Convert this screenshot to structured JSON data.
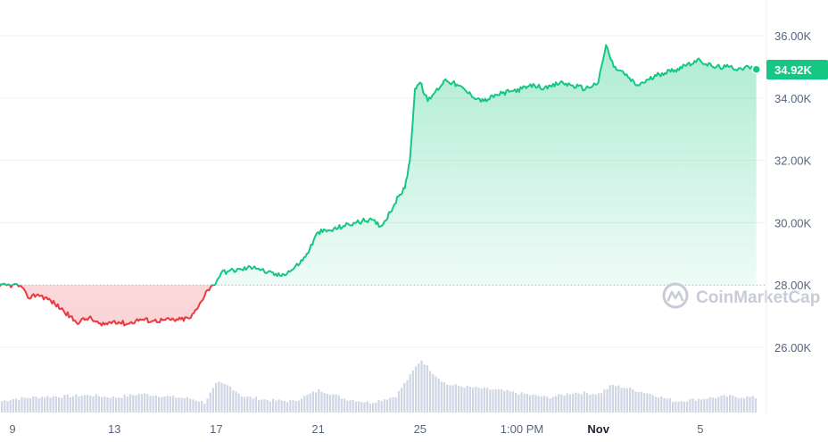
{
  "chart_data": {
    "type": "area",
    "title": "",
    "xlabel": "",
    "ylabel": "",
    "ylim": [
      24000,
      36600
    ],
    "yticks": [
      "26.00K",
      "28.00K",
      "30.00K",
      "32.00K",
      "34.00K",
      "36.00K"
    ],
    "ytick_values": [
      26000,
      28000,
      30000,
      32000,
      34000,
      36000
    ],
    "xtick_labels": [
      "9",
      "13",
      "17",
      "21",
      "25",
      "1:00 PM",
      "Nov",
      "5"
    ],
    "xtick_day_index": [
      0,
      4,
      8,
      12,
      16,
      20,
      23,
      27
    ],
    "xrange_days": [
      -0.5,
      29.2
    ],
    "baseline_value": 28000,
    "current_price": 34920,
    "current_price_label": "34.92K",
    "colors": {
      "up": "#16c784",
      "down": "#ea3943",
      "up_fill_top": "#16c784",
      "down_fill": "#ea3943",
      "volume": "#cfd6e4"
    },
    "series": [
      {
        "values_day_index": [
          -0.5,
          0,
          0.3,
          0.6,
          1,
          1.5,
          2,
          2.5,
          3,
          3.5,
          4,
          4.5,
          5,
          5.5,
          6,
          6.5,
          7,
          7.3,
          7.6,
          7.9,
          8.2,
          8.5,
          9,
          9.5,
          10,
          10.5,
          11,
          11.5,
          12,
          12.5,
          13,
          13.5,
          14,
          14.5,
          15,
          15.2,
          15.4,
          15.6,
          15.8,
          16,
          16.3,
          16.6,
          17,
          17.5,
          18,
          18.5,
          19,
          19.5,
          20,
          20.5,
          21,
          21.5,
          22,
          22.5,
          23,
          23.3,
          23.6,
          24,
          24.5,
          25,
          25.5,
          26,
          26.5,
          27,
          27.5,
          28,
          28.5,
          28.9,
          29.2
        ],
        "values": [
          27960,
          28000,
          27980,
          27600,
          27700,
          27500,
          27180,
          26800,
          26950,
          26700,
          26850,
          26750,
          26900,
          26850,
          26880,
          26880,
          26950,
          27300,
          27800,
          28000,
          28400,
          28450,
          28500,
          28600,
          28400,
          28300,
          28500,
          28900,
          29700,
          29750,
          29900,
          30000,
          30100,
          29900,
          30600,
          30900,
          31100,
          32000,
          34300,
          34500,
          33900,
          34200,
          34600,
          34400,
          34100,
          33900,
          34100,
          34200,
          34300,
          34400,
          34300,
          34500,
          34400,
          34300,
          34500,
          35700,
          35000,
          34800,
          34400,
          34600,
          34800,
          34900,
          35100,
          35200,
          35000,
          35000,
          34950,
          35000,
          34920
        ]
      }
    ],
    "volume": {
      "values_day_index": [
        -0.5,
        0,
        1,
        2,
        3,
        4,
        5,
        6,
        7,
        7.5,
        8,
        8.5,
        9,
        10,
        11,
        12,
        12.5,
        13,
        14,
        15,
        15.5,
        16,
        16.5,
        17,
        18,
        19,
        20,
        21,
        22,
        23,
        23.5,
        24,
        25,
        26,
        27,
        28,
        29.2
      ],
      "values": [
        0.18,
        0.22,
        0.25,
        0.26,
        0.28,
        0.24,
        0.3,
        0.26,
        0.22,
        0.16,
        0.48,
        0.42,
        0.26,
        0.2,
        0.18,
        0.36,
        0.3,
        0.22,
        0.16,
        0.26,
        0.55,
        0.85,
        0.62,
        0.45,
        0.4,
        0.36,
        0.3,
        0.24,
        0.32,
        0.3,
        0.44,
        0.4,
        0.3,
        0.18,
        0.22,
        0.26,
        0.24
      ]
    }
  },
  "watermark": {
    "text": "CoinMarketCap",
    "icon": "coinmarketcap-logo-icon"
  }
}
